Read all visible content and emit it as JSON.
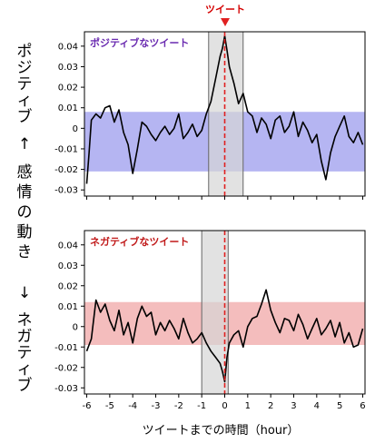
{
  "colors": {
    "positive_band": "#a8a8f0",
    "negative_band": "#f2b2b2",
    "tweet_line": "#e02020",
    "window_fill": "#d6d6d6",
    "positive_label": "#6a2bb0",
    "negative_label": "#c01818",
    "series_line": "#000000"
  },
  "chart_data": [
    {
      "type": "line",
      "panel": "positive",
      "label": "ポジティブなツイート",
      "top_marker_label": "ツイート",
      "x_ticks": [
        -6,
        -5,
        -4,
        -3,
        -2,
        -1,
        0,
        1,
        2,
        3,
        4,
        5,
        6
      ],
      "y_ticks": [
        0.04,
        0.03,
        0.02,
        0.01,
        0,
        -0.01,
        -0.02,
        -0.03
      ],
      "y_tick_labels": [
        "0.04",
        "0.03",
        "0.02",
        "0.01",
        "0",
        "-0.01",
        "-0.02",
        "-0.03"
      ],
      "xlim": [
        -6.1,
        6.1
      ],
      "ylim": [
        -0.033,
        0.047
      ],
      "baseline_band": [
        -0.021,
        0.008
      ],
      "highlight_window": [
        -0.7,
        0.8
      ],
      "tweet_time": 0,
      "series": [
        {
          "x": [
            -6.0,
            -5.9,
            -5.8,
            -5.6,
            -5.4,
            -5.2,
            -5.0,
            -4.8,
            -4.6,
            -4.4,
            -4.2,
            -4.0,
            -3.8,
            -3.6,
            -3.4,
            -3.2,
            -3.0,
            -2.8,
            -2.6,
            -2.4,
            -2.2,
            -2.0,
            -1.8,
            -1.6,
            -1.4,
            -1.2,
            -1.0,
            -0.8,
            -0.6,
            -0.4,
            -0.2,
            -0.1,
            0.0,
            0.1,
            0.2,
            0.4,
            0.6,
            0.8,
            1.0,
            1.2,
            1.4,
            1.6,
            1.8,
            2.0,
            2.2,
            2.4,
            2.6,
            2.8,
            3.0,
            3.2,
            3.4,
            3.6,
            3.8,
            4.0,
            4.2,
            4.4,
            4.6,
            4.8,
            5.0,
            5.2,
            5.4,
            5.6,
            5.8,
            6.0
          ],
          "values": [
            -0.027,
            -0.012,
            0.004,
            0.007,
            0.005,
            0.01,
            0.011,
            0.003,
            0.009,
            -0.002,
            -0.008,
            -0.022,
            -0.01,
            0.003,
            0.001,
            -0.003,
            -0.006,
            -0.002,
            0.001,
            -0.003,
            0.0,
            0.007,
            -0.005,
            -0.002,
            0.002,
            -0.004,
            -0.001,
            0.007,
            0.013,
            0.024,
            0.035,
            0.039,
            0.045,
            0.038,
            0.03,
            0.022,
            0.012,
            0.017,
            0.008,
            0.006,
            -0.002,
            0.005,
            0.002,
            -0.005,
            0.004,
            0.006,
            -0.002,
            0.001,
            0.008,
            -0.004,
            0.003,
            -0.001,
            -0.007,
            -0.003,
            -0.016,
            -0.025,
            -0.012,
            -0.004,
            0.001,
            0.006,
            -0.004,
            -0.007,
            -0.002,
            -0.008
          ]
        }
      ]
    },
    {
      "type": "line",
      "panel": "negative",
      "label": "ネガティブなツイート",
      "x_ticks": [
        -6,
        -5,
        -4,
        -3,
        -2,
        -1,
        0,
        1,
        2,
        3,
        4,
        5,
        6
      ],
      "x_tick_labels": [
        "-6",
        "-5",
        "-4",
        "-3",
        "-2",
        "-1",
        "0",
        "1",
        "2",
        "3",
        "4",
        "5",
        "6"
      ],
      "y_ticks": [
        0.04,
        0.03,
        0.02,
        0.01,
        0,
        -0.01,
        -0.02,
        -0.03
      ],
      "y_tick_labels": [
        "0.04",
        "0.03",
        "0.02",
        "0.01",
        "0",
        "-0.01",
        "-0.02",
        "-0.03"
      ],
      "xlim": [
        -6.1,
        6.1
      ],
      "ylim": [
        -0.033,
        0.047
      ],
      "baseline_band": [
        -0.009,
        0.012
      ],
      "highlight_window": [
        -1.0,
        0.15
      ],
      "tweet_time": 0,
      "xlabel": "ツイートまでの時間（hour）",
      "series": [
        {
          "x": [
            -6.0,
            -5.8,
            -5.6,
            -5.4,
            -5.2,
            -5.0,
            -4.8,
            -4.6,
            -4.4,
            -4.2,
            -4.0,
            -3.8,
            -3.6,
            -3.4,
            -3.2,
            -3.0,
            -2.8,
            -2.6,
            -2.4,
            -2.2,
            -2.0,
            -1.8,
            -1.6,
            -1.4,
            -1.2,
            -1.0,
            -0.8,
            -0.6,
            -0.4,
            -0.2,
            -0.1,
            0.0,
            0.1,
            0.2,
            0.4,
            0.6,
            0.8,
            1.0,
            1.2,
            1.4,
            1.6,
            1.8,
            2.0,
            2.2,
            2.4,
            2.6,
            2.8,
            3.0,
            3.2,
            3.4,
            3.6,
            3.8,
            4.0,
            4.2,
            4.4,
            4.6,
            4.8,
            5.0,
            5.2,
            5.4,
            5.6,
            5.8,
            6.0
          ],
          "values": [
            -0.012,
            -0.006,
            0.013,
            0.007,
            0.011,
            0.003,
            -0.002,
            0.008,
            -0.004,
            0.002,
            -0.008,
            0.004,
            0.01,
            0.005,
            0.007,
            -0.004,
            0.002,
            -0.002,
            0.003,
            -0.001,
            -0.006,
            0.004,
            -0.003,
            -0.008,
            -0.006,
            -0.003,
            -0.008,
            -0.012,
            -0.015,
            -0.018,
            -0.022,
            -0.027,
            -0.015,
            -0.008,
            -0.004,
            -0.002,
            -0.01,
            0.0,
            0.004,
            0.005,
            0.011,
            0.018,
            0.008,
            0.002,
            -0.003,
            0.004,
            0.003,
            -0.002,
            0.006,
            0.001,
            -0.006,
            -0.001,
            0.004,
            -0.004,
            -0.001,
            0.003,
            -0.005,
            0.002,
            -0.008,
            -0.003,
            -0.01,
            -0.009,
            -0.001
          ]
        }
      ]
    }
  ],
  "side_label": {
    "top": "ポジティブ",
    "up_arrow": "↑",
    "middle": "感情の動き",
    "down_arrow": "↓",
    "bottom": "ネガティブ"
  }
}
